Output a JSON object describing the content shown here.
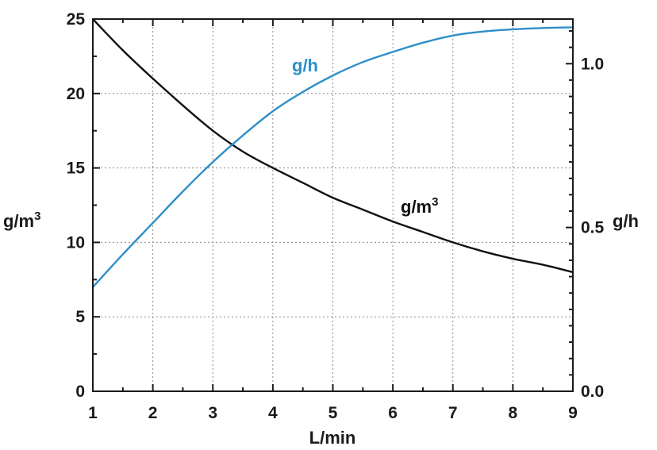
{
  "chart_data": {
    "type": "line",
    "xlabel": "L/min",
    "ylabel_left": "g/m",
    "ylabel_left_sup": "3",
    "ylabel_right": "g/h",
    "xlim": [
      1,
      9
    ],
    "ylim_left": [
      0,
      25
    ],
    "ylim_right": [
      0,
      1.1363
    ],
    "x_ticks": [
      "1",
      "2",
      "3",
      "4",
      "5",
      "6",
      "7",
      "8",
      "9"
    ],
    "y_left_ticks": [
      "0",
      "5",
      "10",
      "15",
      "20",
      "25"
    ],
    "y_right_ticks": [
      "0.0",
      "0.5",
      "1.0"
    ],
    "grid": true,
    "series": [
      {
        "name": "g/m",
        "name_sup": "3",
        "axis": "left",
        "color": "#111111",
        "x": [
          1,
          1.5,
          2,
          2.5,
          3,
          3.5,
          4,
          4.5,
          5,
          5.5,
          6,
          6.5,
          7,
          7.5,
          8,
          8.5,
          9
        ],
        "y": [
          25.0,
          22.9,
          21.0,
          19.2,
          17.5,
          16.1,
          15.0,
          14.0,
          13.0,
          12.2,
          11.4,
          10.7,
          10.0,
          9.4,
          8.9,
          8.5,
          8.0
        ]
      },
      {
        "name": "g/h",
        "axis": "right",
        "color": "#2e8fc8",
        "x": [
          1,
          1.5,
          2,
          2.5,
          3,
          3.5,
          4,
          4.5,
          5,
          5.5,
          6,
          6.5,
          7,
          7.5,
          8,
          8.5,
          9
        ],
        "y": [
          0.318,
          0.418,
          0.514,
          0.61,
          0.7,
          0.781,
          0.855,
          0.914,
          0.964,
          1.005,
          1.036,
          1.064,
          1.086,
          1.098,
          1.105,
          1.109,
          1.111
        ]
      }
    ]
  }
}
